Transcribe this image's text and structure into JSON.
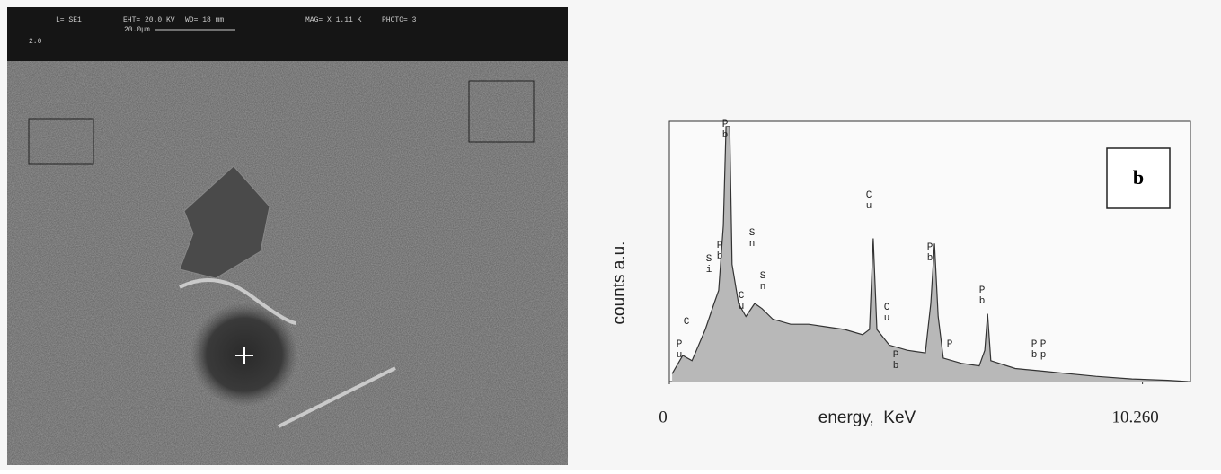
{
  "sem_image": {
    "header": [
      "L= SE1",
      "EHT= 20.0 KV",
      "WD= 18 mm",
      "MAG= X 1.11 K",
      "PHOTO= 3"
    ],
    "scale_bar": "20.0µm",
    "corner": "2.0"
  },
  "chart_data": {
    "type": "area",
    "panel_label": "b",
    "xlabel": "energy,  KeV",
    "ylabel": "counts a.u.",
    "xlim": [
      0,
      11.3
    ],
    "ylim": [
      0,
      100
    ],
    "xticks": [
      0,
      {
        "value": 10.26,
        "label": "10.260"
      }
    ],
    "color": "#b8b8b8",
    "x": [
      0.06,
      0.29,
      0.49,
      0.78,
      0.97,
      1.07,
      1.17,
      1.23,
      1.31,
      1.36,
      1.5,
      1.66,
      1.85,
      2.01,
      2.24,
      2.63,
      3.02,
      3.41,
      3.8,
      4.19,
      4.34,
      4.42,
      4.5,
      4.77,
      5.16,
      5.55,
      5.67,
      5.75,
      5.83,
      5.94,
      6.33,
      6.72,
      6.84,
      6.9,
      6.97,
      7.5,
      8.09,
      8.67,
      9.25,
      10.03,
      10.81,
      11.24
    ],
    "values": [
      3,
      10,
      8,
      20,
      30,
      35,
      60,
      98,
      98,
      45,
      30,
      25,
      30,
      28,
      24,
      22,
      22,
      21,
      20,
      18,
      20,
      55,
      20,
      14,
      12,
      11,
      30,
      53,
      25,
      9,
      7,
      6,
      12,
      26,
      8,
      5,
      4,
      3,
      2,
      1,
      0.5,
      0
    ],
    "annotations": [
      "Pb",
      "Si",
      "Pb",
      "C",
      "Pu",
      "Cu",
      "Sn",
      "Sn",
      "Cu",
      "Cu",
      "Pb",
      "Pb",
      "Pb",
      "P",
      "Pb",
      "Pp"
    ]
  }
}
